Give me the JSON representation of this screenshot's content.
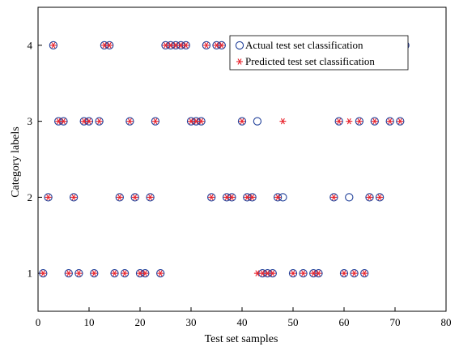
{
  "chart_data": {
    "type": "scatter",
    "xlabel": "Test set samples",
    "ylabel": "Category labels",
    "xlim": [
      0,
      80
    ],
    "ylim": [
      0.5,
      4.5
    ],
    "xticks": [
      0,
      10,
      20,
      30,
      40,
      50,
      60,
      70,
      80
    ],
    "yticks": [
      1,
      2,
      3,
      4
    ],
    "grid": false,
    "legend_position": "top-right",
    "series": [
      {
        "name": "Actual test set classification",
        "marker": "circle",
        "color": "#1f3f99",
        "x": [
          1,
          2,
          3,
          4,
          5,
          6,
          7,
          8,
          9,
          10,
          11,
          12,
          13,
          14,
          15,
          16,
          17,
          18,
          19,
          20,
          21,
          22,
          23,
          24,
          25,
          26,
          27,
          28,
          29,
          30,
          31,
          32,
          33,
          34,
          35,
          36,
          37,
          38,
          39,
          40,
          41,
          42,
          43,
          44,
          45,
          46,
          47,
          48,
          49,
          50,
          51,
          52,
          53,
          54,
          55,
          56,
          57,
          58,
          59,
          60,
          61,
          62,
          63,
          64,
          65,
          66,
          67,
          68,
          69,
          70,
          71,
          72
        ],
        "y": [
          1,
          2,
          4,
          3,
          3,
          1,
          2,
          1,
          3,
          3,
          1,
          3,
          4,
          4,
          1,
          2,
          1,
          3,
          2,
          1,
          1,
          2,
          3,
          1,
          4,
          4,
          4,
          4,
          4,
          3,
          3,
          3,
          4,
          2,
          4,
          4,
          2,
          2,
          4,
          3,
          2,
          2,
          3,
          1,
          1,
          1,
          2,
          2,
          4,
          1,
          4,
          1,
          4,
          1,
          1,
          4,
          4,
          2,
          3,
          1,
          2,
          1,
          3,
          1,
          2,
          3,
          2,
          4,
          3,
          4,
          3,
          4
        ]
      },
      {
        "name": "Predicted test set classification",
        "marker": "asterisk",
        "color": "#e8202a",
        "x": [
          1,
          2,
          3,
          4,
          5,
          6,
          7,
          8,
          9,
          10,
          11,
          12,
          13,
          14,
          15,
          16,
          17,
          18,
          19,
          20,
          21,
          22,
          23,
          24,
          25,
          26,
          27,
          28,
          29,
          30,
          31,
          32,
          33,
          34,
          35,
          36,
          37,
          38,
          39,
          40,
          41,
          42,
          43,
          44,
          45,
          46,
          47,
          48,
          49,
          50,
          51,
          52,
          53,
          54,
          55,
          56,
          57,
          58,
          59,
          60,
          61,
          62,
          63,
          64,
          65,
          66,
          67,
          68,
          69,
          70,
          71,
          72
        ],
        "y": [
          1,
          2,
          4,
          3,
          3,
          1,
          2,
          1,
          3,
          3,
          1,
          3,
          4,
          4,
          1,
          2,
          1,
          3,
          2,
          1,
          1,
          2,
          3,
          1,
          4,
          4,
          4,
          4,
          4,
          3,
          3,
          3,
          4,
          2,
          4,
          4,
          2,
          2,
          4,
          3,
          2,
          2,
          1,
          1,
          1,
          1,
          2,
          3,
          4,
          1,
          4,
          1,
          4,
          1,
          1,
          4,
          4,
          2,
          3,
          1,
          3,
          1,
          3,
          1,
          2,
          3,
          2,
          4,
          3,
          4,
          3,
          4
        ]
      }
    ]
  }
}
